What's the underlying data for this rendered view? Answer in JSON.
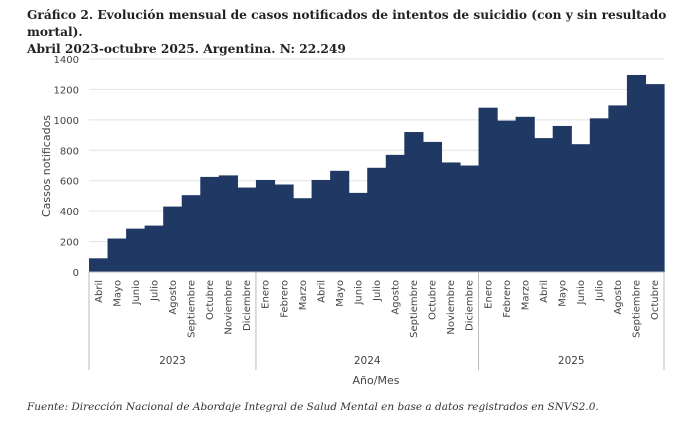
{
  "title_line1": "Gráfico 2. Evolución mensual de casos notificados de intentos de suicidio (con y sin resultado mortal).",
  "title_line2": "Abril 2023-octubre 2025. Argentina. N: 22.249",
  "source": "Fuente: Dirección Nacional de Abordaje Integral de Salud Mental en base a datos registrados en SNVS2.0.",
  "chart_data": {
    "type": "area",
    "style": "step",
    "color": "#1f3864",
    "ylabel": "Cassos notificados",
    "xlabel": "Año/Mes",
    "ylim": [
      0,
      1400
    ],
    "yticks": [
      0,
      200,
      400,
      600,
      800,
      1000,
      1200,
      1400
    ],
    "grid": true,
    "years": [
      {
        "label": "2023",
        "months": 9
      },
      {
        "label": "2024",
        "months": 12
      },
      {
        "label": "2025",
        "months": 10
      }
    ],
    "categories": [
      "Abril",
      "Mayo",
      "Junio",
      "Julio",
      "Agosto",
      "Septiembre",
      "Octubre",
      "Noviembre",
      "Diciembre",
      "Enero",
      "Febrero",
      "Marzo",
      "Abril",
      "Mayo",
      "Junio",
      "Julio",
      "Agosto",
      "Septiembre",
      "Octubre",
      "Noviembre",
      "Diciembre",
      "Enero",
      "Febrero",
      "Marzo",
      "Abril",
      "Mayo",
      "Junio",
      "Julio",
      "Agosto",
      "Septiembre",
      "Octubre"
    ],
    "values": [
      90,
      220,
      285,
      305,
      430,
      505,
      625,
      635,
      555,
      605,
      575,
      485,
      605,
      665,
      520,
      685,
      770,
      920,
      855,
      720,
      700,
      1080,
      995,
      1020,
      880,
      960,
      840,
      1010,
      1095,
      1295,
      1235
    ]
  }
}
